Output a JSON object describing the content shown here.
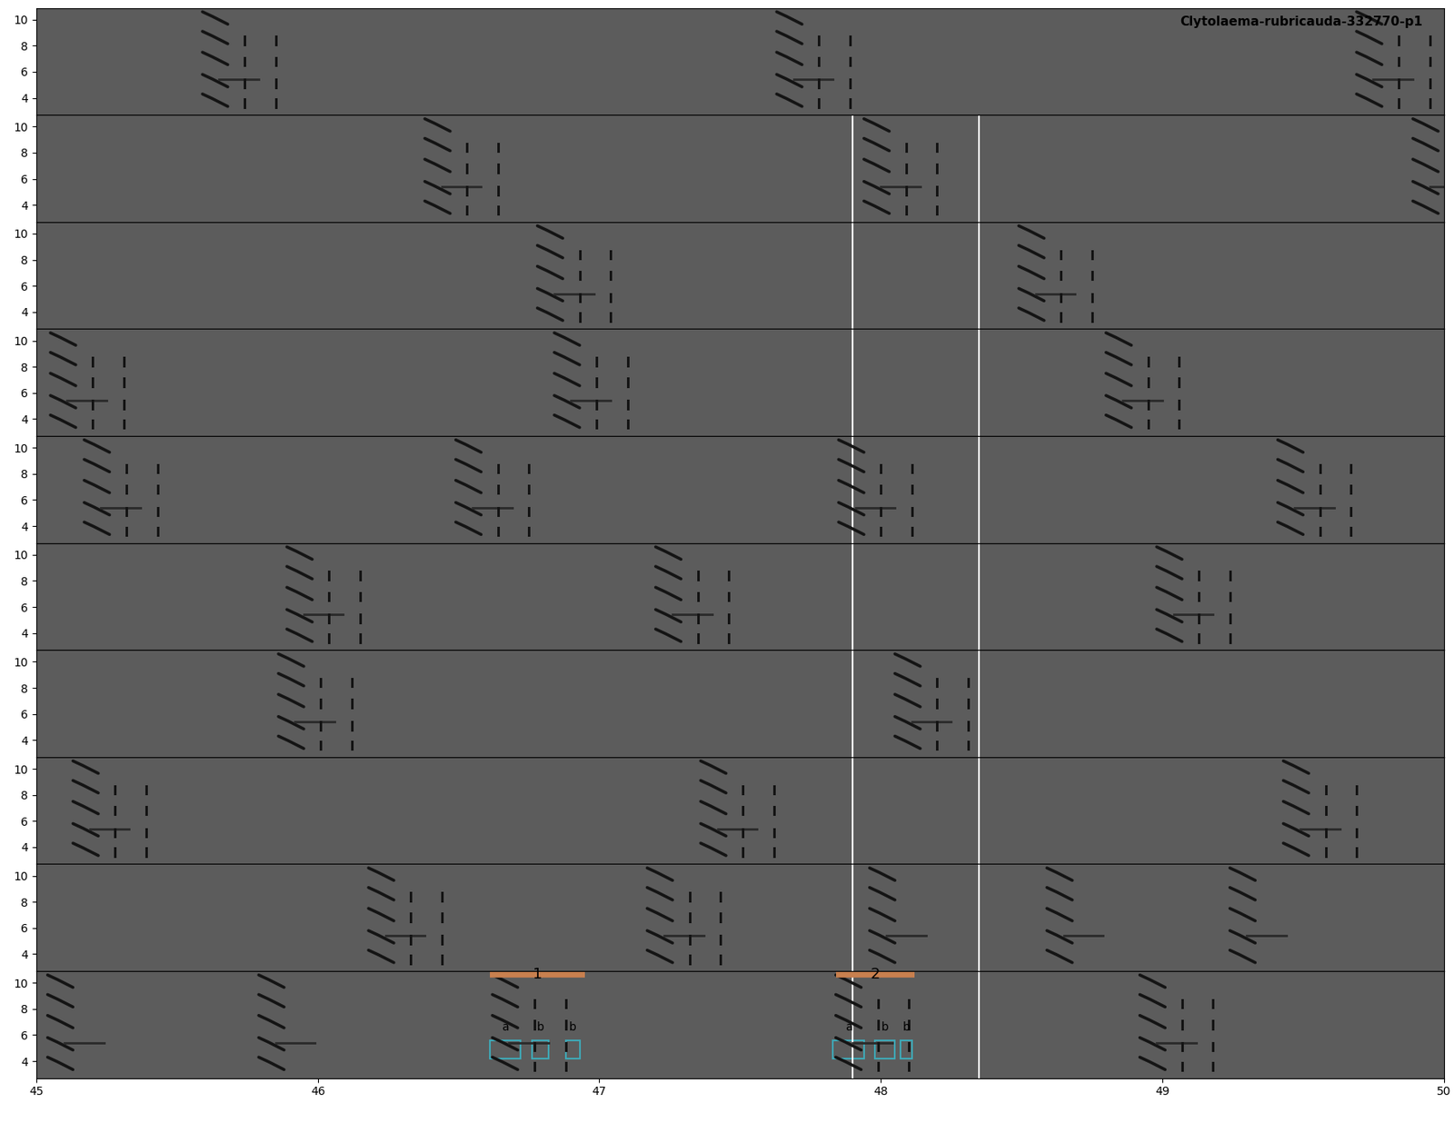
{
  "chart_data": {
    "type": "spectrogram",
    "title": "Clytolaema-rubricauda-332770-p1",
    "ylim": [
      2.7,
      10.9
    ],
    "yticks": [
      4,
      6,
      8,
      10
    ],
    "rows": [
      {
        "xlim": [
          0,
          5
        ],
        "songs": [
          {
            "t": 0.59,
            "parts": 3
          },
          {
            "t": 2.63,
            "parts": 3
          },
          {
            "t": 4.69,
            "parts": 3
          }
        ],
        "lines": []
      },
      {
        "xlim": [
          5,
          10
        ],
        "songs": [
          {
            "t": 6.38,
            "parts": 3
          },
          {
            "t": 7.94,
            "parts": 3
          },
          {
            "t": 9.89,
            "parts": 3
          }
        ],
        "lines": [
          7.9,
          8.35
        ]
      },
      {
        "xlim": [
          10,
          15
        ],
        "songs": [
          {
            "t": 11.78,
            "parts": 3
          },
          {
            "t": 13.49,
            "parts": 3
          }
        ],
        "lines": [
          12.9,
          13.35
        ]
      },
      {
        "xlim": [
          15,
          20
        ],
        "songs": [
          {
            "t": 15.05,
            "parts": 3
          },
          {
            "t": 16.84,
            "parts": 3
          },
          {
            "t": 18.8,
            "parts": 3
          }
        ],
        "lines": [
          17.9,
          18.35
        ]
      },
      {
        "xlim": [
          20,
          25
        ],
        "songs": [
          {
            "t": 20.17,
            "parts": 3
          },
          {
            "t": 21.49,
            "parts": 3
          },
          {
            "t": 22.85,
            "parts": 3
          },
          {
            "t": 24.41,
            "parts": 3
          }
        ],
        "lines": [
          22.9,
          23.35
        ]
      },
      {
        "xlim": [
          25,
          30
        ],
        "songs": [
          {
            "t": 25.89,
            "parts": 3
          },
          {
            "t": 27.2,
            "parts": 3
          },
          {
            "t": 28.98,
            "parts": 3
          }
        ],
        "lines": [
          27.9,
          28.35
        ]
      },
      {
        "xlim": [
          30,
          35
        ],
        "songs": [
          {
            "t": 30.86,
            "parts": 3
          },
          {
            "t": 33.05,
            "parts": 3
          }
        ],
        "lines": [
          32.9,
          33.35
        ]
      },
      {
        "xlim": [
          35,
          40
        ],
        "songs": [
          {
            "t": 35.13,
            "parts": 3
          },
          {
            "t": 37.36,
            "parts": 3
          },
          {
            "t": 39.43,
            "parts": 3
          }
        ],
        "lines": [
          37.9,
          38.35
        ]
      },
      {
        "xlim": [
          40,
          45
        ],
        "songs": [
          {
            "t": 41.18,
            "parts": 3
          },
          {
            "t": 42.17,
            "parts": 3
          },
          {
            "t": 42.96,
            "parts": 1
          },
          {
            "t": 43.59,
            "parts": 1
          },
          {
            "t": 44.24,
            "parts": 1
          }
        ],
        "lines": [
          42.9,
          43.35
        ]
      },
      {
        "xlim": [
          45,
          50
        ],
        "xticks": [
          45,
          46,
          47,
          48,
          49,
          50
        ],
        "songs": [
          {
            "t": 45.04,
            "parts": 1
          },
          {
            "t": 45.79,
            "parts": 1
          },
          {
            "t": 46.62,
            "parts": 3
          },
          {
            "t": 47.84,
            "parts": 3
          },
          {
            "t": 48.92,
            "parts": 3
          }
        ],
        "lines": [
          47.9,
          48.35
        ],
        "segments": [
          {
            "label": "1",
            "start": 46.61,
            "end": 46.95,
            "notes": [
              {
                "label": "a",
                "start": 46.61,
                "end": 46.72,
                "low": 4.2,
                "high": 5.6
              },
              {
                "label": "b",
                "start": 46.76,
                "end": 46.82,
                "low": 4.2,
                "high": 5.6
              },
              {
                "label": "b",
                "start": 46.88,
                "end": 46.93,
                "low": 4.2,
                "high": 5.6
              }
            ]
          },
          {
            "label": "2",
            "start": 47.84,
            "end": 48.12,
            "notes": [
              {
                "label": "a",
                "start": 47.83,
                "end": 47.94,
                "low": 4.2,
                "high": 5.6
              },
              {
                "label": "b",
                "start": 47.98,
                "end": 48.05,
                "low": 4.2,
                "high": 5.6
              },
              {
                "label": "b",
                "start": 48.07,
                "end": 48.11,
                "low": 4.2,
                "high": 5.6
              }
            ]
          }
        ]
      }
    ]
  }
}
